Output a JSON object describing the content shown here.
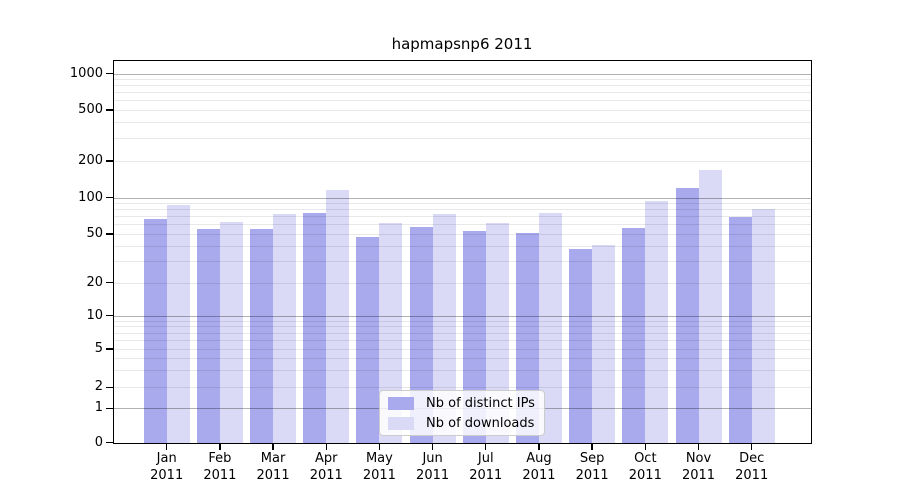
{
  "chart_data": {
    "type": "bar",
    "title": "hapmapsnp6 2011",
    "categories": [
      "Jan 2011",
      "Feb 2011",
      "Mar 2011",
      "Apr 2011",
      "May 2011",
      "Jun 2011",
      "Jul 2011",
      "Aug 2011",
      "Sep 2011",
      "Oct 2011",
      "Nov 2011",
      "Dec 2011"
    ],
    "series": [
      {
        "name": "Nb of distinct IPs",
        "color": "#a9a9ee",
        "values": [
          67,
          55,
          55,
          74,
          47,
          57,
          53,
          51,
          38,
          56,
          120,
          69
        ]
      },
      {
        "name": "Nb of downloads",
        "color": "#dadaf7",
        "values": [
          87,
          63,
          73,
          116,
          62,
          73,
          62,
          74,
          41,
          93,
          170,
          81
        ]
      }
    ],
    "xlabel": "",
    "ylabel": "",
    "y_ticks": [
      0,
      1,
      2,
      5,
      10,
      20,
      50,
      100,
      200,
      500,
      1000
    ],
    "ylim": [
      0,
      1000
    ],
    "y_scale": "log-like (log decades with linear segment from 0 to 1)",
    "grid": true,
    "legend_position": "lower center inside plot",
    "grid_major_values": [
      1,
      10,
      100,
      1000
    ],
    "grid_minor_values": [
      2,
      3,
      4,
      5,
      6,
      7,
      8,
      9,
      20,
      30,
      40,
      50,
      60,
      70,
      80,
      90,
      200,
      300,
      400,
      500,
      600,
      700,
      800,
      900
    ]
  }
}
